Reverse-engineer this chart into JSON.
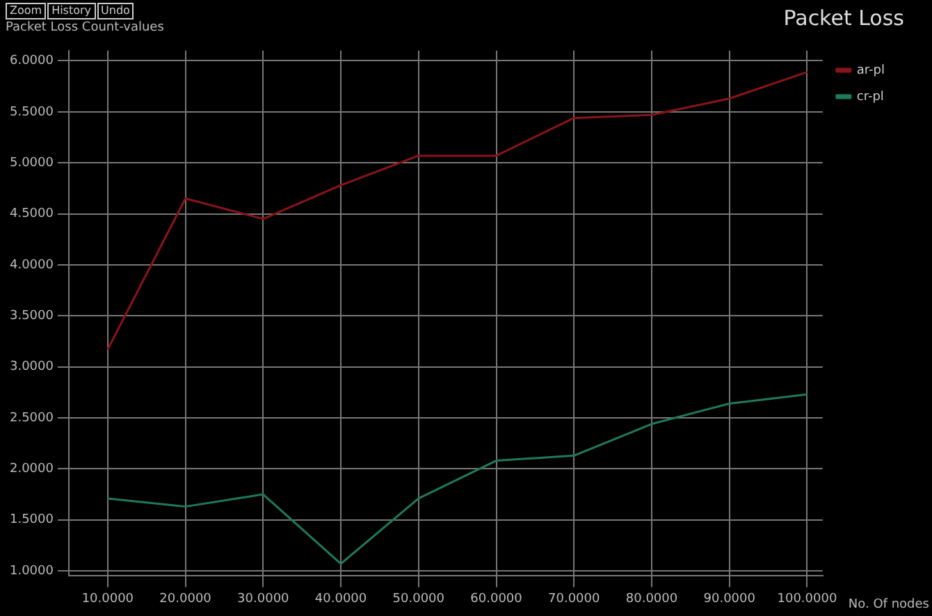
{
  "chart_data": {
    "type": "line",
    "title": "Packet Loss",
    "ylabel": "Packet Loss Count-values",
    "xlabel": "No. Of nodes",
    "annotations": [
      "Zoom",
      "History",
      "Undo"
    ],
    "x": [
      10,
      20,
      30,
      40,
      50,
      60,
      70,
      80,
      90,
      100
    ],
    "series": [
      {
        "name": "ar-pl",
        "color": "#8a1418",
        "values": [
          3.17,
          4.65,
          4.45,
          4.78,
          5.07,
          5.07,
          5.44,
          5.47,
          5.63,
          5.89
        ]
      },
      {
        "name": "cr-pl",
        "color": "#1f7a5a",
        "values": [
          1.71,
          1.63,
          1.75,
          1.07,
          1.71,
          2.08,
          2.13,
          2.44,
          2.64,
          2.73
        ]
      }
    ],
    "xlim": [
      5,
      102
    ],
    "xticks": [
      {
        "value": 10,
        "label": "10.0000"
      },
      {
        "value": 20,
        "label": "20.0000"
      },
      {
        "value": 30,
        "label": "30.0000"
      },
      {
        "value": 40,
        "label": "40.0000"
      },
      {
        "value": 50,
        "label": "50.0000"
      },
      {
        "value": 60,
        "label": "60.0000"
      },
      {
        "value": 70,
        "label": "70.0000"
      },
      {
        "value": 80,
        "label": "80.0000"
      },
      {
        "value": 90,
        "label": "90.0000"
      },
      {
        "value": 100,
        "label": "100.0000"
      }
    ],
    "ylim": [
      0.95,
      6.1
    ],
    "yticks": [
      {
        "value": 1,
        "label": "1.0000"
      },
      {
        "value": 1.5,
        "label": "1.5000"
      },
      {
        "value": 2,
        "label": "2.0000"
      },
      {
        "value": 2.5,
        "label": "2.5000"
      },
      {
        "value": 3,
        "label": "3.0000"
      },
      {
        "value": 3.5,
        "label": "3.5000"
      },
      {
        "value": 4,
        "label": "4.0000"
      },
      {
        "value": 4.5,
        "label": "4.5000"
      },
      {
        "value": 5,
        "label": "5.0000"
      },
      {
        "value": 5.5,
        "label": "5.5000"
      },
      {
        "value": 6,
        "label": "6.0000"
      }
    ],
    "grid": true,
    "legend": "top right",
    "marker": "none",
    "line_style": "solid"
  }
}
